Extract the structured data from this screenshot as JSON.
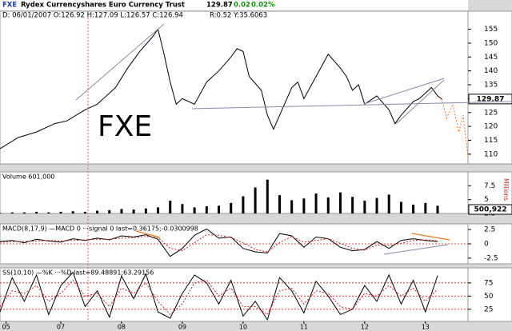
{
  "header": {
    "symbol": "FXE",
    "name": "Rydex Currencyshares Euro Currency Trust",
    "last": "129.87",
    "change": "0.02",
    "change_pct": "0.02%",
    "ohlc": "D: 06/01/2007 O:126.92 H:127.09 L:126.57 C:126.94",
    "stats": "R:0.52 Y:35.6063",
    "watermark": "FXE"
  },
  "chart_data": [
    {
      "type": "line",
      "ylim": [
        106.5,
        161.5
      ],
      "xlim": [
        2006,
        2013.7
      ],
      "yticks": [
        110,
        115,
        120,
        125,
        130,
        135,
        140,
        145,
        150,
        155
      ],
      "last_label": "129.87",
      "series": [
        {
          "color": "#000000",
          "dash": false,
          "x": [
            2006.0,
            2006.3,
            2006.6,
            2006.9,
            2007.1,
            2007.4,
            2007.6,
            2007.9,
            2008.1,
            2008.3,
            2008.5,
            2008.6,
            2008.7,
            2008.8,
            2008.9,
            2009.0,
            2009.2,
            2009.4,
            2009.6,
            2009.8,
            2009.9,
            2010.0,
            2010.1,
            2010.3,
            2010.4,
            2010.5,
            2010.6,
            2010.8,
            2010.9,
            2011.0,
            2011.2,
            2011.3,
            2011.4,
            2011.6,
            2011.7,
            2011.8,
            2011.9,
            2012.0,
            2012.2,
            2012.4,
            2012.5,
            2012.6,
            2012.8,
            2012.9,
            2013.0,
            2013.1,
            2013.2,
            2013.27
          ],
          "values": [
            112,
            116,
            118,
            121,
            122,
            126,
            128,
            134,
            141,
            147,
            152,
            155,
            146,
            136,
            128,
            130,
            128,
            136,
            140,
            145,
            148,
            147,
            138,
            133,
            124,
            119,
            124,
            134,
            136,
            130,
            138,
            142,
            146,
            141,
            138,
            133,
            135,
            128,
            131,
            126,
            121,
            124,
            129,
            130,
            132,
            134,
            131,
            129.87
          ]
        },
        {
          "color": "#f07820",
          "dash": true,
          "x": [
            2013.27,
            2013.35,
            2013.45,
            2013.55,
            2013.62,
            2013.7
          ],
          "values": [
            129.87,
            123,
            128,
            118,
            124,
            109
          ]
        }
      ]
    },
    {
      "type": "bar",
      "ylim": [
        2.5,
        10
      ],
      "xlim": [
        2006,
        2013.7
      ],
      "yticks": [
        2.5,
        5,
        7.5
      ],
      "label": "Volume 601,000",
      "last_label": "500,922",
      "unit": "Millions",
      "series": [
        {
          "color": "#000000",
          "x": [
            2006.0,
            2006.2,
            2006.4,
            2006.6,
            2006.8,
            2007.0,
            2007.2,
            2007.4,
            2007.6,
            2007.8,
            2008.0,
            2008.2,
            2008.4,
            2008.6,
            2008.8,
            2009.0,
            2009.2,
            2009.4,
            2009.6,
            2009.8,
            2010.0,
            2010.2,
            2010.4,
            2010.6,
            2010.8,
            2011.0,
            2011.2,
            2011.4,
            2011.6,
            2011.8,
            2012.0,
            2012.2,
            2012.4,
            2012.6,
            2012.8,
            2013.0,
            2013.2
          ],
          "values": [
            2.6,
            2.7,
            2.7,
            2.8,
            2.7,
            2.8,
            2.9,
            2.8,
            3.0,
            3.1,
            3.3,
            3.2,
            3.4,
            3.6,
            4.8,
            4.2,
            3.6,
            3.8,
            3.9,
            4.4,
            5.6,
            7.2,
            8.6,
            5.8,
            4.9,
            5.2,
            6.1,
            5.4,
            6.3,
            5.5,
            4.8,
            5.3,
            5.9,
            4.6,
            4.1,
            4.4,
            3.9
          ]
        }
      ]
    },
    {
      "type": "line",
      "ylim": [
        -3.5,
        3.5
      ],
      "xlim": [
        2006,
        2013.7
      ],
      "yticks": [
        -2.5,
        0,
        2.5
      ],
      "grid_value": 0,
      "label": "MACD(8,17,9) —MACD 0 ···signal 0 last=0.36175;-0.0300998",
      "series": [
        {
          "color": "#000000",
          "dash": false,
          "x": [
            2006.0,
            2006.2,
            2006.4,
            2006.6,
            2006.8,
            2007.0,
            2007.2,
            2007.4,
            2007.6,
            2007.8,
            2008.0,
            2008.2,
            2008.4,
            2008.6,
            2008.8,
            2009.0,
            2009.2,
            2009.4,
            2009.6,
            2009.8,
            2010.0,
            2010.2,
            2010.4,
            2010.6,
            2010.8,
            2011.0,
            2011.2,
            2011.4,
            2011.6,
            2011.8,
            2012.0,
            2012.2,
            2012.4,
            2012.6,
            2012.8,
            2013.0,
            2013.2
          ],
          "values": [
            0.4,
            0.6,
            0.2,
            0.8,
            0.5,
            0.3,
            0.9,
            0.6,
            1.0,
            0.7,
            1.4,
            1.2,
            1.6,
            0.8,
            -2.2,
            -0.8,
            1.5,
            2.6,
            1.0,
            1.2,
            -0.8,
            -1.4,
            -1.6,
            1.8,
            1.4,
            -0.6,
            1.2,
            0.9,
            -0.6,
            -1.2,
            -1.0,
            0.4,
            -0.8,
            0.6,
            0.9,
            0.6,
            0.4
          ]
        },
        {
          "color": "#d02020",
          "dash": true,
          "x": [
            2006.0,
            2006.2,
            2006.4,
            2006.6,
            2006.8,
            2007.0,
            2007.2,
            2007.4,
            2007.6,
            2007.8,
            2008.0,
            2008.2,
            2008.4,
            2008.6,
            2008.8,
            2009.0,
            2009.2,
            2009.4,
            2009.6,
            2009.8,
            2010.0,
            2010.2,
            2010.4,
            2010.6,
            2010.8,
            2011.0,
            2011.2,
            2011.4,
            2011.6,
            2011.8,
            2012.0,
            2012.2,
            2012.4,
            2012.6,
            2012.8,
            2013.0,
            2013.2
          ],
          "values": [
            0.3,
            0.4,
            0.4,
            0.5,
            0.6,
            0.5,
            0.6,
            0.7,
            0.8,
            0.8,
            1.0,
            1.1,
            1.3,
            1.1,
            -0.8,
            -1.2,
            0.2,
            1.6,
            1.5,
            1.1,
            0.2,
            -1.0,
            -1.4,
            0.2,
            1.3,
            0.3,
            0.6,
            0.9,
            0.1,
            -0.8,
            -1.1,
            -0.2,
            -0.3,
            0.1,
            0.6,
            0.7,
            0.5
          ]
        }
      ]
    },
    {
      "type": "line",
      "ylim": [
        2,
        103.5
      ],
      "xlim": [
        2006,
        2013.7
      ],
      "yticks": [
        25,
        50,
        75
      ],
      "grid_dotted": true,
      "label": "SS(10,10) —%K ···%D last=89.48891;63.29156",
      "xticks": [
        {
          "value": 2006.1,
          "label": "05"
        },
        {
          "value": 2007,
          "label": "07"
        },
        {
          "value": 2008,
          "label": "08"
        },
        {
          "value": 2009,
          "label": "09"
        },
        {
          "value": 2010,
          "label": "10"
        },
        {
          "value": 2011,
          "label": "11"
        },
        {
          "value": 2012,
          "label": "12"
        },
        {
          "value": 2013,
          "label": "13"
        }
      ],
      "series": [
        {
          "color": "#000000",
          "dash": false,
          "x": [
            2006.0,
            2006.2,
            2006.4,
            2006.6,
            2006.8,
            2007.0,
            2007.2,
            2007.4,
            2007.6,
            2007.8,
            2008.0,
            2008.2,
            2008.4,
            2008.6,
            2008.8,
            2009.0,
            2009.2,
            2009.4,
            2009.6,
            2009.8,
            2010.0,
            2010.2,
            2010.4,
            2010.6,
            2010.8,
            2011.0,
            2011.2,
            2011.4,
            2011.6,
            2011.8,
            2012.0,
            2012.2,
            2012.4,
            2012.6,
            2012.8,
            2013.0,
            2013.2
          ],
          "values": [
            20,
            85,
            40,
            90,
            15,
            70,
            95,
            30,
            60,
            10,
            88,
            45,
            92,
            20,
            8,
            55,
            90,
            75,
            35,
            80,
            12,
            40,
            5,
            85,
            60,
            18,
            78,
            50,
            15,
            25,
            70,
            40,
            90,
            35,
            80,
            20,
            89
          ]
        },
        {
          "color": "#d02020",
          "dash": true,
          "x": [
            2006.0,
            2006.2,
            2006.4,
            2006.6,
            2006.8,
            2007.0,
            2007.2,
            2007.4,
            2007.6,
            2007.8,
            2008.0,
            2008.2,
            2008.4,
            2008.6,
            2008.8,
            2009.0,
            2009.2,
            2009.4,
            2009.6,
            2009.8,
            2010.0,
            2010.2,
            2010.4,
            2010.6,
            2010.8,
            2011.0,
            2011.2,
            2011.4,
            2011.6,
            2011.8,
            2012.0,
            2012.2,
            2012.4,
            2012.6,
            2012.8,
            2013.0,
            2013.2
          ],
          "values": [
            30,
            60,
            55,
            70,
            40,
            55,
            80,
            50,
            55,
            30,
            65,
            55,
            75,
            40,
            15,
            35,
            75,
            80,
            50,
            65,
            30,
            30,
            15,
            60,
            65,
            35,
            60,
            55,
            30,
            25,
            55,
            50,
            70,
            50,
            65,
            40,
            63
          ]
        }
      ]
    }
  ]
}
